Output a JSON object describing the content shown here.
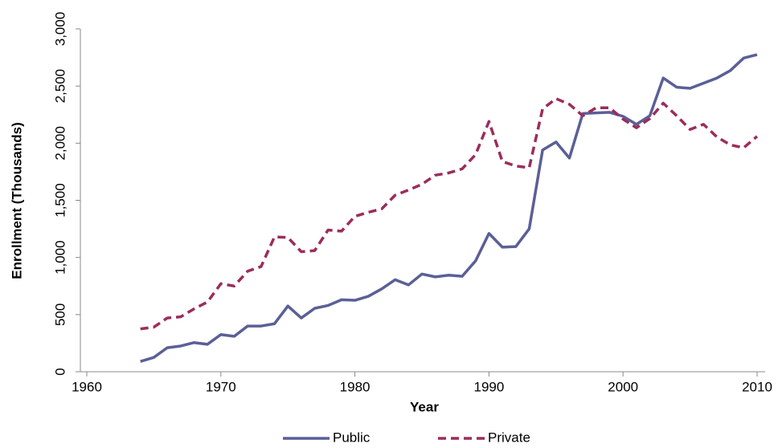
{
  "chart_data": {
    "type": "line",
    "x_label": "Year",
    "y_label": "Enrollment (Thousands)",
    "x": [
      1964,
      1965,
      1966,
      1967,
      1968,
      1969,
      1970,
      1971,
      1972,
      1973,
      1974,
      1975,
      1976,
      1977,
      1978,
      1979,
      1980,
      1981,
      1982,
      1983,
      1984,
      1985,
      1986,
      1987,
      1988,
      1989,
      1990,
      1991,
      1992,
      1993,
      1994,
      1995,
      1996,
      1997,
      1998,
      1999,
      2000,
      2001,
      2002,
      2003,
      2004,
      2005,
      2006,
      2007,
      2008,
      2009,
      2010
    ],
    "series": [
      {
        "name": "Public",
        "color": "#5b5f97",
        "dashed": false,
        "values": [
          90,
          125,
          210,
          225,
          255,
          240,
          325,
          310,
          400,
          400,
          420,
          575,
          470,
          555,
          580,
          630,
          625,
          660,
          725,
          805,
          760,
          855,
          830,
          845,
          835,
          970,
          1210,
          1090,
          1095,
          1250,
          1940,
          2010,
          1870,
          2260,
          2265,
          2270,
          2235,
          2165,
          2240,
          2570,
          2490,
          2480,
          2525,
          2570,
          2635,
          2745,
          2775
        ]
      },
      {
        "name": "Private",
        "color": "#9b2d5b",
        "dashed": true,
        "values": [
          375,
          390,
          470,
          480,
          550,
          610,
          770,
          750,
          880,
          920,
          1180,
          1175,
          1050,
          1060,
          1240,
          1230,
          1360,
          1395,
          1425,
          1545,
          1590,
          1640,
          1720,
          1740,
          1775,
          1900,
          2190,
          1840,
          1800,
          1785,
          2300,
          2390,
          2340,
          2240,
          2310,
          2310,
          2210,
          2135,
          2215,
          2350,
          2240,
          2120,
          2165,
          2055,
          1985,
          1960,
          2060
        ]
      }
    ],
    "xlim": [
      1960,
      2010
    ],
    "xticks": [
      1960,
      1970,
      1980,
      1990,
      2000,
      2010
    ],
    "ylim": [
      0,
      3000
    ],
    "yticks": [
      0,
      500,
      {
        "value": 1000,
        "label": "1,000"
      },
      {
        "value": 1500,
        "label": "1,500"
      },
      {
        "value": 2000,
        "label": "2,000"
      },
      {
        "value": 2500,
        "label": "2,500"
      },
      {
        "value": 3000,
        "label": "3,000"
      }
    ],
    "legend": "bottom"
  }
}
